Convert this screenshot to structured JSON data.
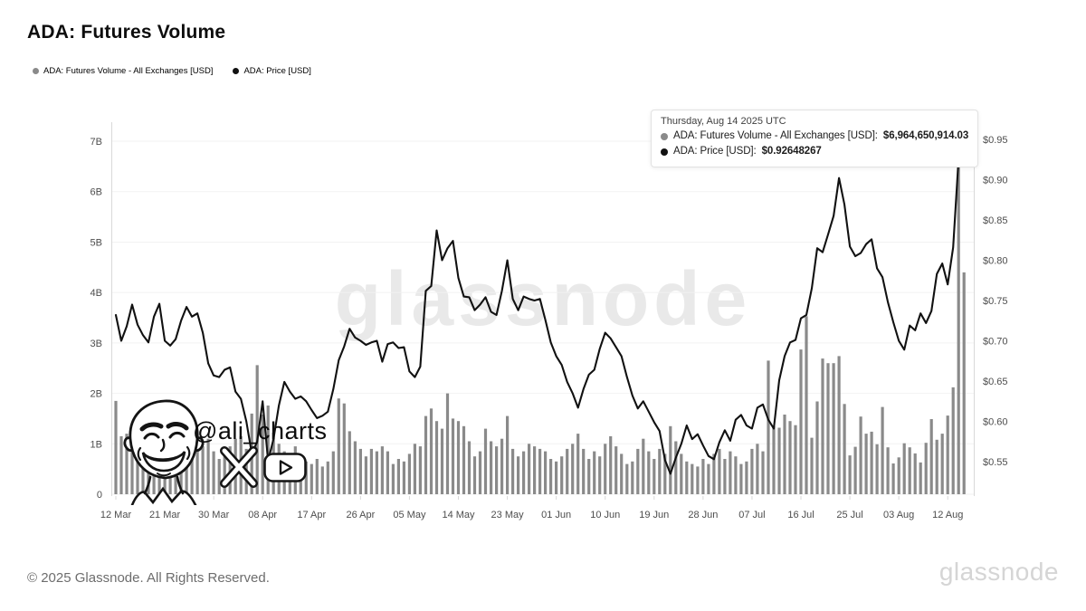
{
  "header": {
    "title": "ADA: Futures Volume"
  },
  "legend": {
    "volume": {
      "label": "ADA: Futures Volume - All Exchanges [USD]",
      "color": "#8a8a8a"
    },
    "price": {
      "label": "ADA: Price [USD]",
      "color": "#111111"
    }
  },
  "tooltip": {
    "timestamp": "Thursday, Aug 14 2025 UTC",
    "volume_label": "ADA: Futures Volume - All Exchanges [USD]:",
    "volume_value": "$6,964,650,914.03",
    "price_label": "ADA: Price [USD]:",
    "price_value": "$0.92648267"
  },
  "watermark": "glassnode",
  "annotation": {
    "handle": "@ali_charts"
  },
  "footer": {
    "copyright": "© 2025 Glassnode. All Rights Reserved.",
    "brand": "glassnode"
  },
  "chart_data": {
    "type": "mixed",
    "title": "ADA: Futures Volume",
    "grid": "horizontal",
    "legend_position": "top-left",
    "x_ticks": [
      "12 Mar",
      "21 Mar",
      "30 Mar",
      "08 Apr",
      "17 Apr",
      "26 Apr",
      "05 May",
      "14 May",
      "23 May",
      "01 Jun",
      "10 Jun",
      "19 Jun",
      "28 Jun",
      "07 Jul",
      "16 Jul",
      "25 Jul",
      "03 Aug",
      "12 Aug"
    ],
    "left_axis": {
      "series": "futures-volume",
      "unit": "USD",
      "ticks": [
        "0",
        "1B",
        "2B",
        "3B",
        "4B",
        "5B",
        "6B",
        "7B"
      ],
      "range_billions": [
        0,
        7
      ]
    },
    "right_axis": {
      "series": "price",
      "unit": "USD",
      "ticks": [
        "$0.55",
        "$0.60",
        "$0.65",
        "$0.70",
        "$0.75",
        "$0.80",
        "$0.85",
        "$0.90",
        "$0.95"
      ],
      "range_usd": [
        0.55,
        0.95
      ]
    },
    "dates": [
      "2025-03-12",
      "2025-03-13",
      "2025-03-14",
      "2025-03-15",
      "2025-03-16",
      "2025-03-17",
      "2025-03-18",
      "2025-03-19",
      "2025-03-20",
      "2025-03-21",
      "2025-03-22",
      "2025-03-23",
      "2025-03-24",
      "2025-03-25",
      "2025-03-26",
      "2025-03-27",
      "2025-03-28",
      "2025-03-29",
      "2025-03-30",
      "2025-03-31",
      "2025-04-01",
      "2025-04-02",
      "2025-04-03",
      "2025-04-04",
      "2025-04-05",
      "2025-04-06",
      "2025-04-07",
      "2025-04-08",
      "2025-04-09",
      "2025-04-10",
      "2025-04-11",
      "2025-04-12",
      "2025-04-13",
      "2025-04-14",
      "2025-04-15",
      "2025-04-16",
      "2025-04-17",
      "2025-04-18",
      "2025-04-19",
      "2025-04-20",
      "2025-04-21",
      "2025-04-22",
      "2025-04-23",
      "2025-04-24",
      "2025-04-25",
      "2025-04-26",
      "2025-04-27",
      "2025-04-28",
      "2025-04-29",
      "2025-04-30",
      "2025-05-01",
      "2025-05-02",
      "2025-05-03",
      "2025-05-04",
      "2025-05-05",
      "2025-05-06",
      "2025-05-07",
      "2025-05-08",
      "2025-05-09",
      "2025-05-10",
      "2025-05-11",
      "2025-05-12",
      "2025-05-13",
      "2025-05-14",
      "2025-05-15",
      "2025-05-16",
      "2025-05-17",
      "2025-05-18",
      "2025-05-19",
      "2025-05-20",
      "2025-05-21",
      "2025-05-22",
      "2025-05-23",
      "2025-05-24",
      "2025-05-25",
      "2025-05-26",
      "2025-05-27",
      "2025-05-28",
      "2025-05-29",
      "2025-05-30",
      "2025-05-31",
      "2025-06-01",
      "2025-06-02",
      "2025-06-03",
      "2025-06-04",
      "2025-06-05",
      "2025-06-06",
      "2025-06-07",
      "2025-06-08",
      "2025-06-09",
      "2025-06-10",
      "2025-06-11",
      "2025-06-12",
      "2025-06-13",
      "2025-06-14",
      "2025-06-15",
      "2025-06-16",
      "2025-06-17",
      "2025-06-18",
      "2025-06-19",
      "2025-06-20",
      "2025-06-21",
      "2025-06-22",
      "2025-06-23",
      "2025-06-24",
      "2025-06-25",
      "2025-06-26",
      "2025-06-27",
      "2025-06-28",
      "2025-06-29",
      "2025-06-30",
      "2025-07-01",
      "2025-07-02",
      "2025-07-03",
      "2025-07-04",
      "2025-07-05",
      "2025-07-06",
      "2025-07-07",
      "2025-07-08",
      "2025-07-09",
      "2025-07-10",
      "2025-07-11",
      "2025-07-12",
      "2025-07-13",
      "2025-07-14",
      "2025-07-15",
      "2025-07-16",
      "2025-07-17",
      "2025-07-18",
      "2025-07-19",
      "2025-07-20",
      "2025-07-21",
      "2025-07-22",
      "2025-07-23",
      "2025-07-24",
      "2025-07-25",
      "2025-07-26",
      "2025-07-27",
      "2025-07-28",
      "2025-07-29",
      "2025-07-30",
      "2025-07-31",
      "2025-08-01",
      "2025-08-02",
      "2025-08-03",
      "2025-08-04",
      "2025-08-05",
      "2025-08-06",
      "2025-08-07",
      "2025-08-08",
      "2025-08-09",
      "2025-08-10",
      "2025-08-11",
      "2025-08-12",
      "2025-08-13",
      "2025-08-14",
      "2025-08-15"
    ],
    "series": [
      {
        "name": "ADA: Futures Volume - All Exchanges [USD]",
        "type": "bar",
        "axis": "left",
        "color": "#8a8a8a",
        "unit": "USD billions",
        "values": [
          1.85,
          1.15,
          1.2,
          1.35,
          0.75,
          0.85,
          1.0,
          1.55,
          1.1,
          1.3,
          0.8,
          0.75,
          1.26,
          1.35,
          1.05,
          0.9,
          0.95,
          1.1,
          0.85,
          0.7,
          0.75,
          0.95,
          1.1,
          1.15,
          0.9,
          1.6,
          2.56,
          1.58,
          1.76,
          1.22,
          1.0,
          0.85,
          0.8,
          0.95,
          0.75,
          0.65,
          0.6,
          0.7,
          0.55,
          0.65,
          0.85,
          1.9,
          1.8,
          1.25,
          1.05,
          0.9,
          0.75,
          0.9,
          0.85,
          0.95,
          0.85,
          0.6,
          0.7,
          0.65,
          0.8,
          1.0,
          0.95,
          1.55,
          1.7,
          1.45,
          1.3,
          2.0,
          1.5,
          1.45,
          1.35,
          1.05,
          0.75,
          0.85,
          1.3,
          1.05,
          0.95,
          1.1,
          1.55,
          0.9,
          0.75,
          0.85,
          1.0,
          0.95,
          0.9,
          0.85,
          0.7,
          0.65,
          0.75,
          0.9,
          1.0,
          1.2,
          0.9,
          0.7,
          0.85,
          0.75,
          1.0,
          1.15,
          0.95,
          0.8,
          0.6,
          0.65,
          0.9,
          1.1,
          0.85,
          0.7,
          0.9,
          0.8,
          1.35,
          1.05,
          0.8,
          0.65,
          0.6,
          0.55,
          0.7,
          0.6,
          0.8,
          0.9,
          0.7,
          0.85,
          0.75,
          0.6,
          0.65,
          0.9,
          1.0,
          0.85,
          2.65,
          1.35,
          1.32,
          1.58,
          1.45,
          1.37,
          2.87,
          3.53,
          1.12,
          1.84,
          2.69,
          2.6,
          2.6,
          2.74,
          1.79,
          0.77,
          0.94,
          1.54,
          1.2,
          1.24,
          0.99,
          1.73,
          0.93,
          0.61,
          0.73,
          1.01,
          0.93,
          0.81,
          0.63,
          1.02,
          1.49,
          1.08,
          1.2,
          1.56,
          2.12,
          6.96,
          4.4
        ]
      },
      {
        "name": "ADA: Price [USD]",
        "type": "line",
        "axis": "right",
        "color": "#111111",
        "unit": "USD",
        "values": [
          0.732,
          0.7,
          0.718,
          0.745,
          0.72,
          0.707,
          0.698,
          0.73,
          0.746,
          0.7,
          0.694,
          0.702,
          0.725,
          0.742,
          0.73,
          0.734,
          0.71,
          0.672,
          0.657,
          0.655,
          0.664,
          0.667,
          0.637,
          0.628,
          0.6,
          0.56,
          0.575,
          0.625,
          0.551,
          0.578,
          0.62,
          0.649,
          0.637,
          0.628,
          0.631,
          0.625,
          0.614,
          0.604,
          0.607,
          0.612,
          0.64,
          0.676,
          0.693,
          0.715,
          0.704,
          0.7,
          0.695,
          0.698,
          0.7,
          0.674,
          0.696,
          0.698,
          0.691,
          0.692,
          0.662,
          0.655,
          0.668,
          0.762,
          0.768,
          0.837,
          0.8,
          0.815,
          0.824,
          0.778,
          0.755,
          0.754,
          0.738,
          0.745,
          0.754,
          0.736,
          0.732,
          0.762,
          0.8,
          0.752,
          0.738,
          0.755,
          0.752,
          0.75,
          0.752,
          0.726,
          0.698,
          0.681,
          0.67,
          0.649,
          0.635,
          0.617,
          0.64,
          0.658,
          0.664,
          0.69,
          0.71,
          0.703,
          0.692,
          0.681,
          0.655,
          0.632,
          0.616,
          0.625,
          0.612,
          0.599,
          0.588,
          0.552,
          0.535,
          0.555,
          0.572,
          0.595,
          0.578,
          0.584,
          0.57,
          0.557,
          0.553,
          0.574,
          0.589,
          0.576,
          0.602,
          0.608,
          0.595,
          0.591,
          0.617,
          0.621,
          0.602,
          0.591,
          0.651,
          0.681,
          0.698,
          0.701,
          0.728,
          0.732,
          0.765,
          0.815,
          0.81,
          0.832,
          0.855,
          0.902,
          0.869,
          0.817,
          0.805,
          0.809,
          0.82,
          0.826,
          0.79,
          0.779,
          0.748,
          0.723,
          0.7,
          0.689,
          0.719,
          0.713,
          0.734,
          0.722,
          0.737,
          0.783,
          0.796,
          0.77,
          0.816,
          0.926,
          0.945
        ]
      }
    ]
  }
}
